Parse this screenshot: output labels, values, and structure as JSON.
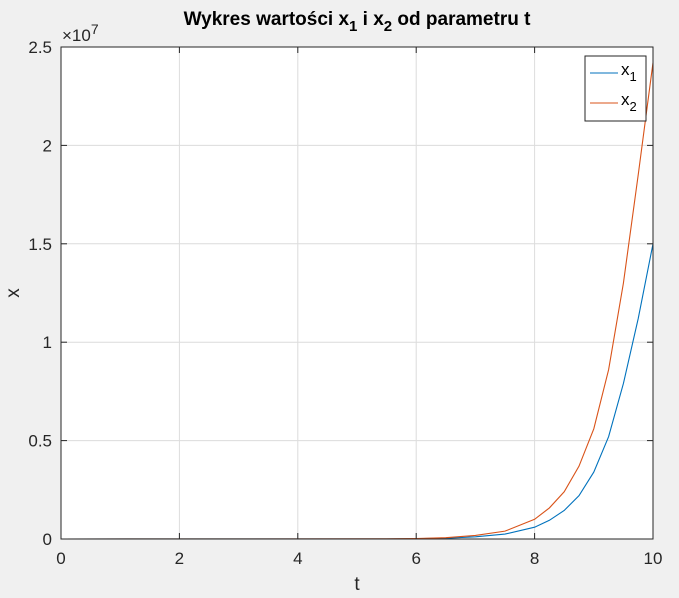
{
  "chart_data": {
    "type": "line",
    "title": {
      "prefix": "Wykres wartości x",
      "sub1": "1",
      "middle": " i x",
      "sub2": "2",
      "suffix": " od parametru t"
    },
    "xlabel": "t",
    "ylabel": "x",
    "exponent_label": {
      "base": "×10",
      "power": "7"
    },
    "xlim": [
      0,
      10
    ],
    "ylim": [
      0,
      2.5
    ],
    "y_scale_factor": 10000000,
    "xticks": [
      0,
      2,
      4,
      6,
      8,
      10
    ],
    "xtick_labels": [
      "0",
      "2",
      "4",
      "6",
      "8",
      "10"
    ],
    "yticks": [
      0,
      0.5,
      1,
      1.5,
      2,
      2.5
    ],
    "ytick_labels": [
      "0",
      "0.5",
      "1",
      "1.5",
      "2",
      "2.5"
    ],
    "grid": true,
    "legend_location": "top-right",
    "x": [
      0,
      5.5,
      6,
      6.5,
      7,
      7.5,
      8,
      8.25,
      8.5,
      8.75,
      9,
      9.25,
      9.5,
      9.75,
      10
    ],
    "series": [
      {
        "name": "x",
        "name_sub": "1",
        "color": "#0072bd",
        "values": [
          0,
          0.0005,
          0.0015,
          0.004,
          0.011,
          0.025,
          0.06,
          0.095,
          0.145,
          0.22,
          0.34,
          0.52,
          0.79,
          1.12,
          1.5
        ]
      },
      {
        "name": "x",
        "name_sub": "2",
        "color": "#d95319",
        "values": [
          0,
          0.0008,
          0.0025,
          0.0065,
          0.018,
          0.04,
          0.1,
          0.158,
          0.24,
          0.37,
          0.56,
          0.86,
          1.3,
          1.85,
          2.42
        ]
      }
    ]
  }
}
